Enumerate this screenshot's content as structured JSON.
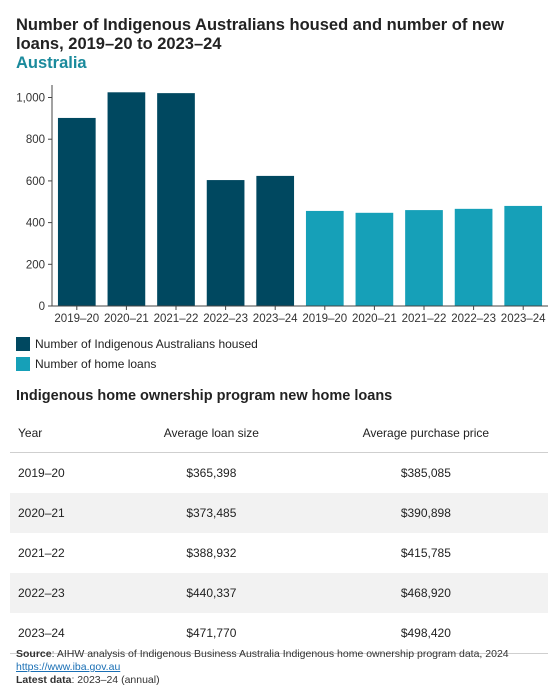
{
  "title": "Number of Indigenous Australians housed and number of new loans, 2019–20 to 2023–24",
  "subtitle": "Australia",
  "colors": {
    "housed": "#004860",
    "loans": "#16a0b8"
  },
  "chart_data": {
    "type": "bar",
    "categories": [
      "2019–20",
      "2020–21",
      "2021–22",
      "2022–23",
      "2023–24",
      "2019–20",
      "2020–21",
      "2021–22",
      "2022–23",
      "2023–24"
    ],
    "series": [
      {
        "name": "Number of Indigenous Australians housed",
        "values": [
          902,
          1025,
          1021,
          604,
          624,
          null,
          null,
          null,
          null,
          null
        ]
      },
      {
        "name": "Number of home loans",
        "values": [
          null,
          null,
          null,
          null,
          null,
          456,
          447,
          460,
          466,
          480
        ]
      }
    ],
    "yticks": [
      "0",
      "200",
      "400",
      "600",
      "800",
      "1,000"
    ],
    "ylim": [
      0,
      1060
    ],
    "grid": false,
    "legend": "bottom-left"
  },
  "legend": [
    {
      "label": "Number of Indigenous Australians housed",
      "color": "#004860"
    },
    {
      "label": "Number of home loans",
      "color": "#16a0b8"
    }
  ],
  "table": {
    "title": "Indigenous home ownership program new home loans",
    "headers": [
      "Year",
      "Average loan size",
      "Average purchase price"
    ],
    "rows": [
      [
        "2019–20",
        "$365,398",
        "$385,085"
      ],
      [
        "2020–21",
        "$373,485",
        "$390,898"
      ],
      [
        "2021–22",
        "$388,932",
        "$415,785"
      ],
      [
        "2022–23",
        "$440,337",
        "$468,920"
      ],
      [
        "2023–24",
        "$471,770",
        "$498,420"
      ]
    ]
  },
  "footer": {
    "source_label": "Source",
    "source_text": ": AIHW analysis of Indigenous Business Australia Indigenous home ownership program data, 2024",
    "link": "https://www.iba.gov.au",
    "latest_label": "Latest data",
    "latest_text": ": 2023–24 (annual)"
  }
}
